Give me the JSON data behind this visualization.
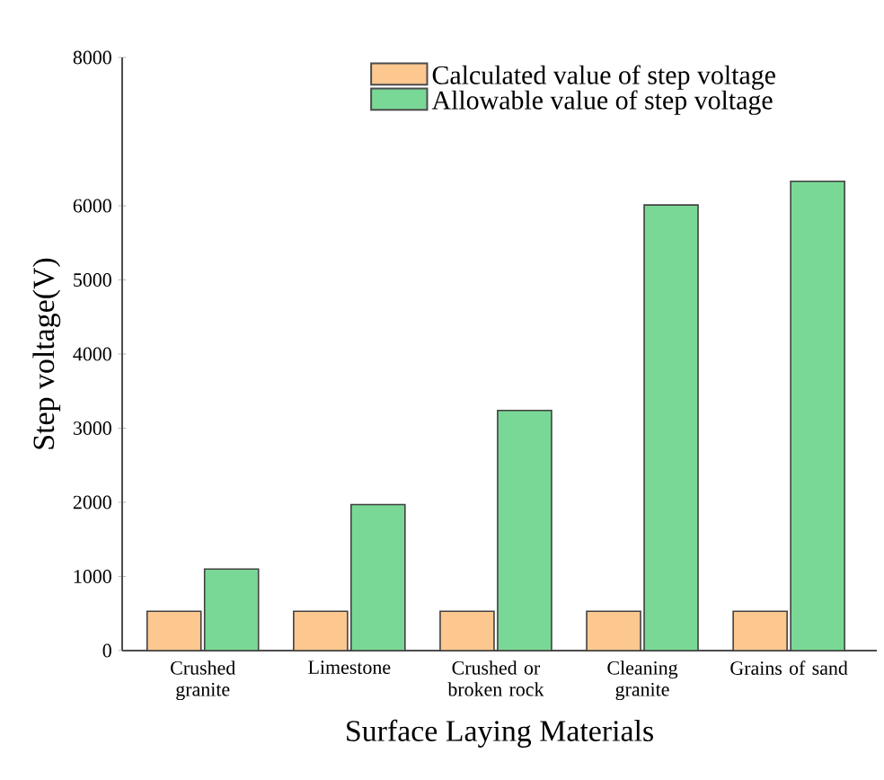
{
  "chart_data": {
    "type": "bar",
    "xlabel": "Surface Laying Materials",
    "ylabel": "Step voltage(V)",
    "categories": [
      "Crushed granite",
      "Limestone",
      "Crushed or broken rock",
      "Cleaning granite",
      "Grains of sand"
    ],
    "series": [
      {
        "name": "Calculated value of step voltage",
        "color": "#fdc890",
        "values": [
          530,
          530,
          530,
          530,
          530
        ]
      },
      {
        "name": "Allowable value of step voltage",
        "color": "#7ad896",
        "values": [
          1100,
          1970,
          3240,
          6010,
          6330
        ]
      }
    ],
    "ylim": [
      0,
      8000
    ],
    "yticks": [
      0,
      1000,
      2000,
      3000,
      4000,
      5000,
      6000,
      8000
    ],
    "legend": "top",
    "grid": false
  }
}
